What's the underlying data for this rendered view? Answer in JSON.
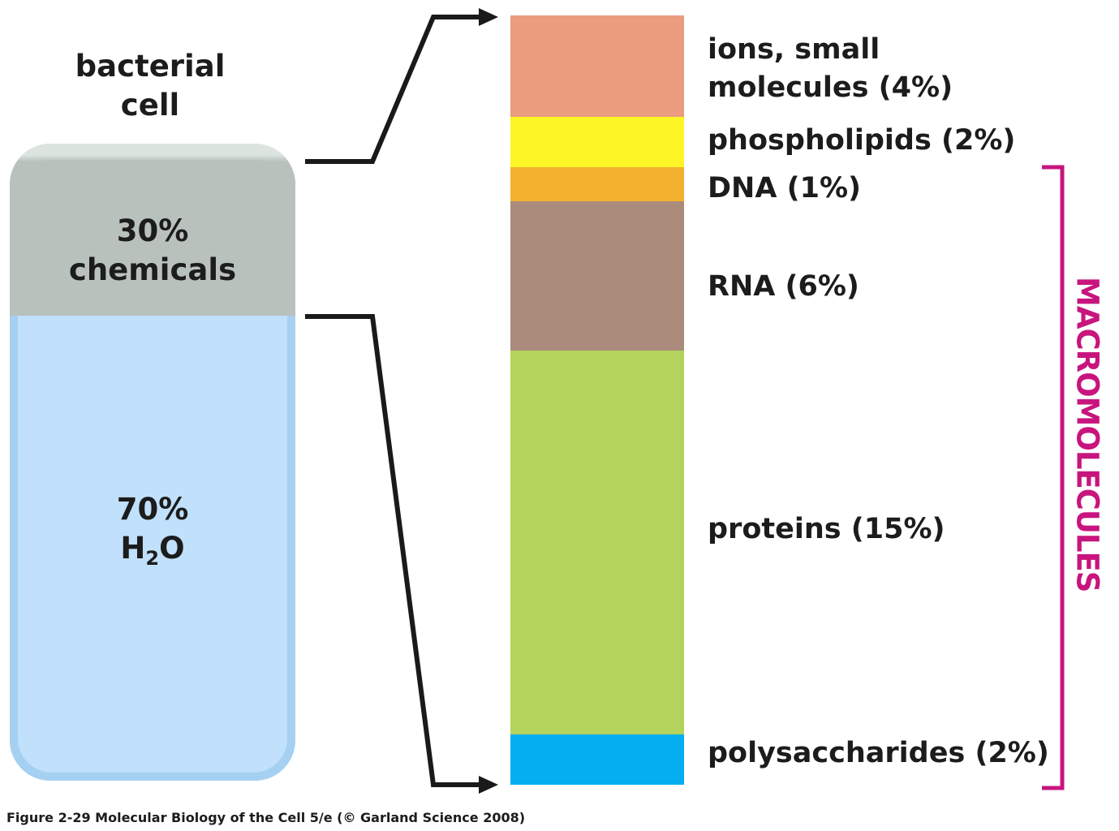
{
  "cell": {
    "title_line1": "bacterial",
    "title_line2": "cell",
    "chemicals_pct": "30%",
    "chemicals_label": "chemicals",
    "water_pct": "70%",
    "water_formula_h": "H",
    "water_formula_sub": "2",
    "water_formula_o": "O"
  },
  "components": [
    {
      "label_line1": "ions, small",
      "label_line2": "molecules (4%)",
      "color": "#eb9b7e"
    },
    {
      "label_line1": "phospholipids (2%)",
      "label_line2": "",
      "color": "#fdf526"
    },
    {
      "label_line1": "DNA (1%)",
      "label_line2": "",
      "color": "#f2b230"
    },
    {
      "label_line1": "RNA (6%)",
      "label_line2": "",
      "color": "#aa8b7c"
    },
    {
      "label_line1": "proteins (15%)",
      "label_line2": "",
      "color": "#b3d35c"
    },
    {
      "label_line1": "polysaccharides (2%)",
      "label_line2": "",
      "color": "#04aeef"
    }
  ],
  "macromolecules": {
    "label": "MACROMOLECULES",
    "color": "#c8157e"
  },
  "caption": "Figure 2-29  Molecular Biology of the Cell 5/e (© Garland Science 2008)"
}
